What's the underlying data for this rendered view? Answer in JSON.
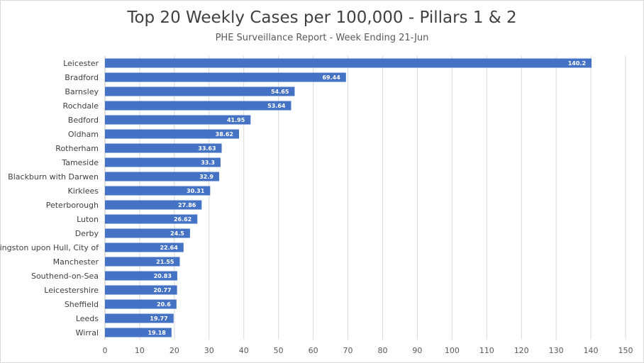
{
  "chart_data": {
    "type": "bar",
    "orientation": "horizontal",
    "title": "Top 20 Weekly Cases per 100,000 - Pillars 1 & 2",
    "subtitle": "PHE Surveillance Report - Week Ending 21-Jun",
    "categories": [
      "Leicester",
      "Bradford",
      "Barnsley",
      "Rochdale",
      "Bedford",
      "Oldham",
      "Rotherham",
      "Tameside",
      "Blackburn with Darwen",
      "Kirklees",
      "Peterborough",
      "Luton",
      "Derby",
      "Kingston upon Hull, City of",
      "Manchester",
      "Southend-on-Sea",
      "Leicestershire",
      "Sheffield",
      "Leeds",
      "Wirral"
    ],
    "values": [
      140.2,
      69.44,
      54.65,
      53.64,
      41.95,
      38.62,
      33.63,
      33.3,
      32.9,
      30.31,
      27.86,
      26.62,
      24.5,
      22.64,
      21.55,
      20.83,
      20.77,
      20.6,
      19.77,
      19.18
    ],
    "data_labels": [
      "140.2",
      "69.44",
      "54.65",
      "53.64",
      "41.95",
      "38.62",
      "33.63",
      "33.3",
      "32.9",
      "30.31",
      "27.86",
      "26.62",
      "24.5",
      "22.64",
      "21.55",
      "20.83",
      "20.77",
      "20.6",
      "19.77",
      "19.18"
    ],
    "xlim": [
      0,
      150
    ],
    "xticks": [
      "0",
      "10",
      "20",
      "30",
      "40",
      "50",
      "60",
      "70",
      "80",
      "90",
      "100",
      "110",
      "120",
      "130",
      "140",
      "150"
    ],
    "grid": true,
    "legend": "none",
    "bar_color": "#4472c4",
    "grid_color": "#d9d9d9"
  }
}
